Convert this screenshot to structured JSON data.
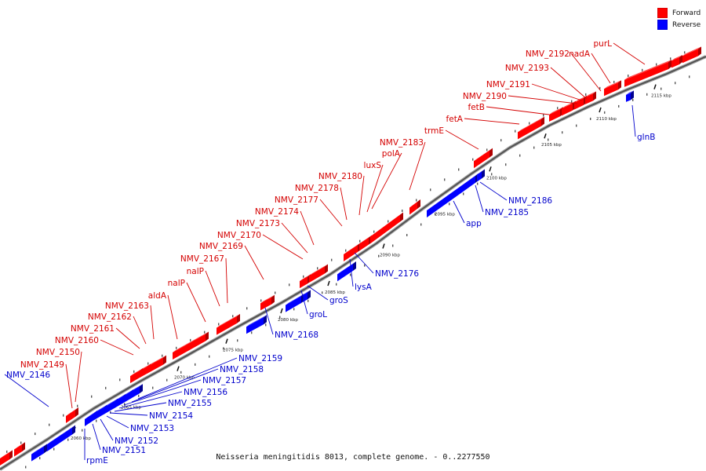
{
  "legend": {
    "forward_label": "Forward",
    "reverse_label": "Reverse",
    "forward_color": "#ff0000",
    "reverse_color": "#0000ff"
  },
  "caption": "Neisseria meningitidis 8013, complete genome. - 0..2277550",
  "scale_labels": [
    "2060 kbp",
    "2065 kbp",
    "2070 kbp",
    "2075 kbp",
    "2080 kbp",
    "2085 kbp",
    "2090 kbp",
    "2095 kbp",
    "2100 kbp",
    "2105 kbp",
    "2110 kbp",
    "2115 kbp"
  ],
  "forward_genes": [
    "NMV_2149",
    "NMV_2150",
    "NMV_2160",
    "NMV_2161",
    "NMV_2162",
    "NMV_2163",
    "aldA",
    "nalP",
    "nalP",
    "NMV_2167",
    "NMV_2169",
    "NMV_2170",
    "NMV_2173",
    "NMV_2174",
    "NMV_2177",
    "NMV_2178",
    "NMV_2180",
    "luxS",
    "polA",
    "NMV_2183",
    "trmE",
    "fetA",
    "fetB",
    "NMV_2190",
    "NMV_2191",
    "NMV_2193",
    "NMV_2192",
    "nadA",
    "purL"
  ],
  "reverse_genes": [
    "NMV_2146",
    "rpmE",
    "NMV_2151",
    "NMV_2152",
    "NMV_2153",
    "NMV_2154",
    "NMV_2155",
    "NMV_2156",
    "NMV_2157",
    "NMV_2158",
    "NMV_2159",
    "NMV_2168",
    "groL",
    "groS",
    "lysA",
    "NMV_2176",
    "app",
    "NMV_2185",
    "NMV_2186",
    "glnB"
  ]
}
